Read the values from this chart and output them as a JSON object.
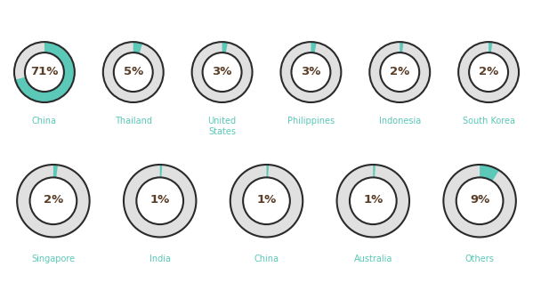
{
  "items": [
    {
      "label": "China",
      "value": 71,
      "row": 0,
      "col": 0
    },
    {
      "label": "Thailand",
      "value": 5,
      "row": 0,
      "col": 1
    },
    {
      "label": "United\nStates",
      "value": 3,
      "row": 0,
      "col": 2
    },
    {
      "label": "Philippines",
      "value": 3,
      "row": 0,
      "col": 3
    },
    {
      "label": "Indonesia",
      "value": 2,
      "row": 0,
      "col": 4
    },
    {
      "label": "South Korea",
      "value": 2,
      "row": 0,
      "col": 5
    },
    {
      "label": "Singapore",
      "value": 2,
      "row": 1,
      "col": 0
    },
    {
      "label": "India",
      "value": 1,
      "row": 1,
      "col": 1
    },
    {
      "label": "China",
      "value": 1,
      "row": 1,
      "col": 2
    },
    {
      "label": "Australia",
      "value": 1,
      "row": 1,
      "col": 3
    },
    {
      "label": "Others",
      "value": 9,
      "row": 1,
      "col": 4
    }
  ],
  "filled_color": "#5bc8b8",
  "empty_color": "#e0e0e0",
  "ring_edge_color": "#2a2a2a",
  "text_color": "#5a3e28",
  "label_color": "#5bc8b8",
  "background": "#ffffff",
  "n_cols_row0": 6,
  "n_cols_row1": 5,
  "font_size_pct": 9.5,
  "font_size_label": 7.0
}
